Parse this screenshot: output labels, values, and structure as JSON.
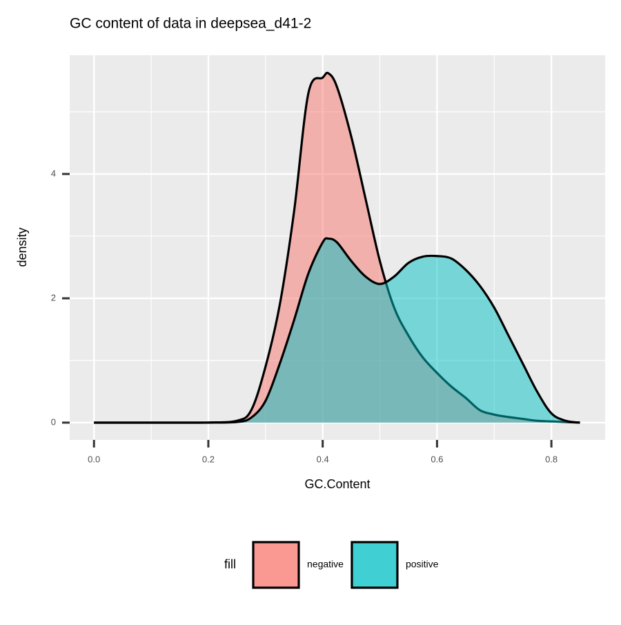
{
  "chart_data": {
    "type": "density",
    "title": "GC content of data in deepsea_d41-2",
    "x_label": "GC.Content",
    "y_label": "density",
    "legend_title": "fill",
    "x": [
      0,
      0.05,
      0.1,
      0.15,
      0.2,
      0.25,
      0.275,
      0.3,
      0.325,
      0.35,
      0.375,
      0.4,
      0.41,
      0.425,
      0.45,
      0.475,
      0.5,
      0.525,
      0.55,
      0.575,
      0.6,
      0.625,
      0.65,
      0.675,
      0.7,
      0.725,
      0.75,
      0.775,
      0.8,
      0.825,
      0.85
    ],
    "series": [
      {
        "name": "negative",
        "color": "#F8766D",
        "values": [
          0,
          0,
          0,
          0,
          0.002,
          0.03,
          0.2,
          0.9,
          1.9,
          3.4,
          5.3,
          5.55,
          5.62,
          5.4,
          4.6,
          3.6,
          2.6,
          1.85,
          1.4,
          1.05,
          0.8,
          0.58,
          0.4,
          0.2,
          0.13,
          0.09,
          0.06,
          0.03,
          0.02,
          0.01,
          0
        ]
      },
      {
        "name": "positive",
        "color": "#00BFC4",
        "values": [
          0,
          0,
          0,
          0,
          0,
          0.01,
          0.08,
          0.35,
          0.95,
          1.65,
          2.4,
          2.9,
          2.96,
          2.9,
          2.6,
          2.35,
          2.23,
          2.35,
          2.57,
          2.67,
          2.68,
          2.64,
          2.46,
          2.2,
          1.85,
          1.4,
          0.95,
          0.5,
          0.15,
          0.03,
          0
        ]
      }
    ],
    "xlim": [
      -0.0425,
      0.894
    ],
    "ylim": [
      -0.278,
      5.91
    ],
    "xticks": [
      {
        "value": 0,
        "label": "0.0"
      },
      0.2,
      0.4,
      0.6,
      0.8
    ],
    "yticks": [
      0,
      2,
      4
    ],
    "grid": true,
    "legend_position": "bottom"
  }
}
